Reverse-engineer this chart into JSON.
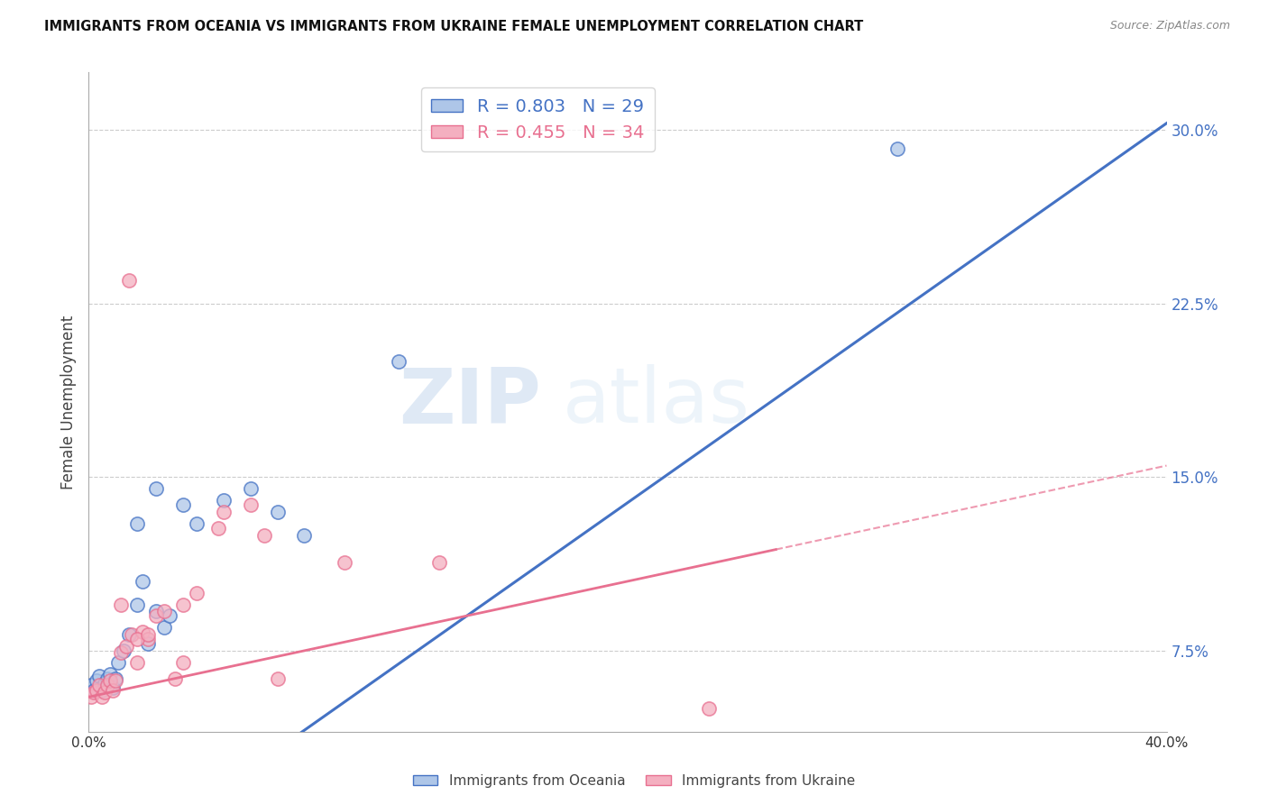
{
  "title": "IMMIGRANTS FROM OCEANIA VS IMMIGRANTS FROM UKRAINE FEMALE UNEMPLOYMENT CORRELATION CHART",
  "source": "Source: ZipAtlas.com",
  "ylabel": "Female Unemployment",
  "xmin": 0.0,
  "xmax": 0.4,
  "ymin": 0.04,
  "ymax": 0.325,
  "y_ticks": [
    0.075,
    0.15,
    0.225,
    0.3
  ],
  "y_tick_labels": [
    "7.5%",
    "15.0%",
    "22.5%",
    "30.0%"
  ],
  "color_oceania": "#aec6e8",
  "color_ukraine": "#f4afc0",
  "color_oceania_line": "#4472c4",
  "color_ukraine_line": "#e87090",
  "R_oceania": 0.803,
  "N_oceania": 29,
  "R_ukraine": 0.455,
  "N_ukraine": 34,
  "legend_label_oceania": "Immigrants from Oceania",
  "legend_label_ukraine": "Immigrants from Ukraine",
  "watermark_zip": "ZIP",
  "watermark_atlas": "atlas",
  "oceania_x": [
    0.001,
    0.002,
    0.003,
    0.004,
    0.005,
    0.006,
    0.007,
    0.008,
    0.009,
    0.01,
    0.011,
    0.013,
    0.015,
    0.018,
    0.02,
    0.022,
    0.025,
    0.028,
    0.03,
    0.035,
    0.04,
    0.05,
    0.06,
    0.07,
    0.08,
    0.025,
    0.018,
    0.115,
    0.3
  ],
  "oceania_y": [
    0.06,
    0.058,
    0.062,
    0.064,
    0.058,
    0.061,
    0.063,
    0.065,
    0.059,
    0.063,
    0.07,
    0.075,
    0.082,
    0.095,
    0.105,
    0.078,
    0.092,
    0.085,
    0.09,
    0.138,
    0.13,
    0.14,
    0.145,
    0.135,
    0.125,
    0.145,
    0.13,
    0.2,
    0.292
  ],
  "ukraine_x": [
    0.001,
    0.002,
    0.003,
    0.004,
    0.005,
    0.006,
    0.007,
    0.008,
    0.009,
    0.01,
    0.012,
    0.014,
    0.016,
    0.018,
    0.02,
    0.022,
    0.025,
    0.028,
    0.032,
    0.035,
    0.04,
    0.048,
    0.06,
    0.07,
    0.095,
    0.05,
    0.065,
    0.012,
    0.018,
    0.022,
    0.035,
    0.13,
    0.015,
    0.23
  ],
  "ukraine_y": [
    0.055,
    0.057,
    0.058,
    0.06,
    0.055,
    0.057,
    0.06,
    0.062,
    0.058,
    0.062,
    0.074,
    0.077,
    0.082,
    0.07,
    0.083,
    0.08,
    0.09,
    0.092,
    0.063,
    0.095,
    0.1,
    0.128,
    0.138,
    0.063,
    0.113,
    0.135,
    0.125,
    0.095,
    0.08,
    0.082,
    0.07,
    0.113,
    0.235,
    0.05
  ],
  "blue_line_slope": 0.82,
  "blue_line_intercept": -0.025,
  "pink_line_slope": 0.25,
  "pink_line_intercept": 0.055
}
